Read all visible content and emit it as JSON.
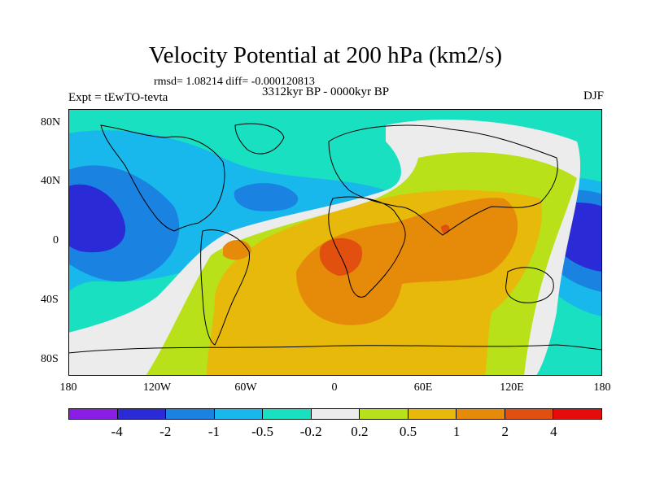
{
  "title": "Velocity Potential at 200 hPa (km2/s)",
  "stats_text": "rmsd= 1.08214 diff= -0.000120813",
  "experiment": "Expt = tEwTO-tevta",
  "period": "3312kyr BP - 0000kyr BP",
  "season": "DJF",
  "x_ticks": [
    "180",
    "120W",
    "60W",
    "0",
    "60E",
    "120E",
    "180"
  ],
  "y_ticks": [
    "80N",
    "40N",
    "0",
    "40S",
    "80S"
  ],
  "colorbar": {
    "colors": [
      "#8a1ee6",
      "#2a2ad6",
      "#1a82e0",
      "#18b8ec",
      "#19e0c0",
      "#ececec",
      "#b8e11a",
      "#e6b90b",
      "#e68a0a",
      "#e1500e",
      "#e60c0c"
    ],
    "labels": [
      "-4",
      "-2",
      "-1",
      "-0.5",
      "-0.2",
      "0.2",
      "0.5",
      "1",
      "2",
      "4"
    ]
  },
  "map_colors": {
    "ocean_base": "#19e0c0",
    "c_m4": "#2a2ad6",
    "c_m2": "#1a82e0",
    "c_m1": "#18b8ec",
    "c_p02": "#ececec",
    "c_p05": "#b8e11a",
    "c_p1": "#e6b90b",
    "c_p2": "#e68a0a",
    "c_p4": "#e1500e"
  }
}
